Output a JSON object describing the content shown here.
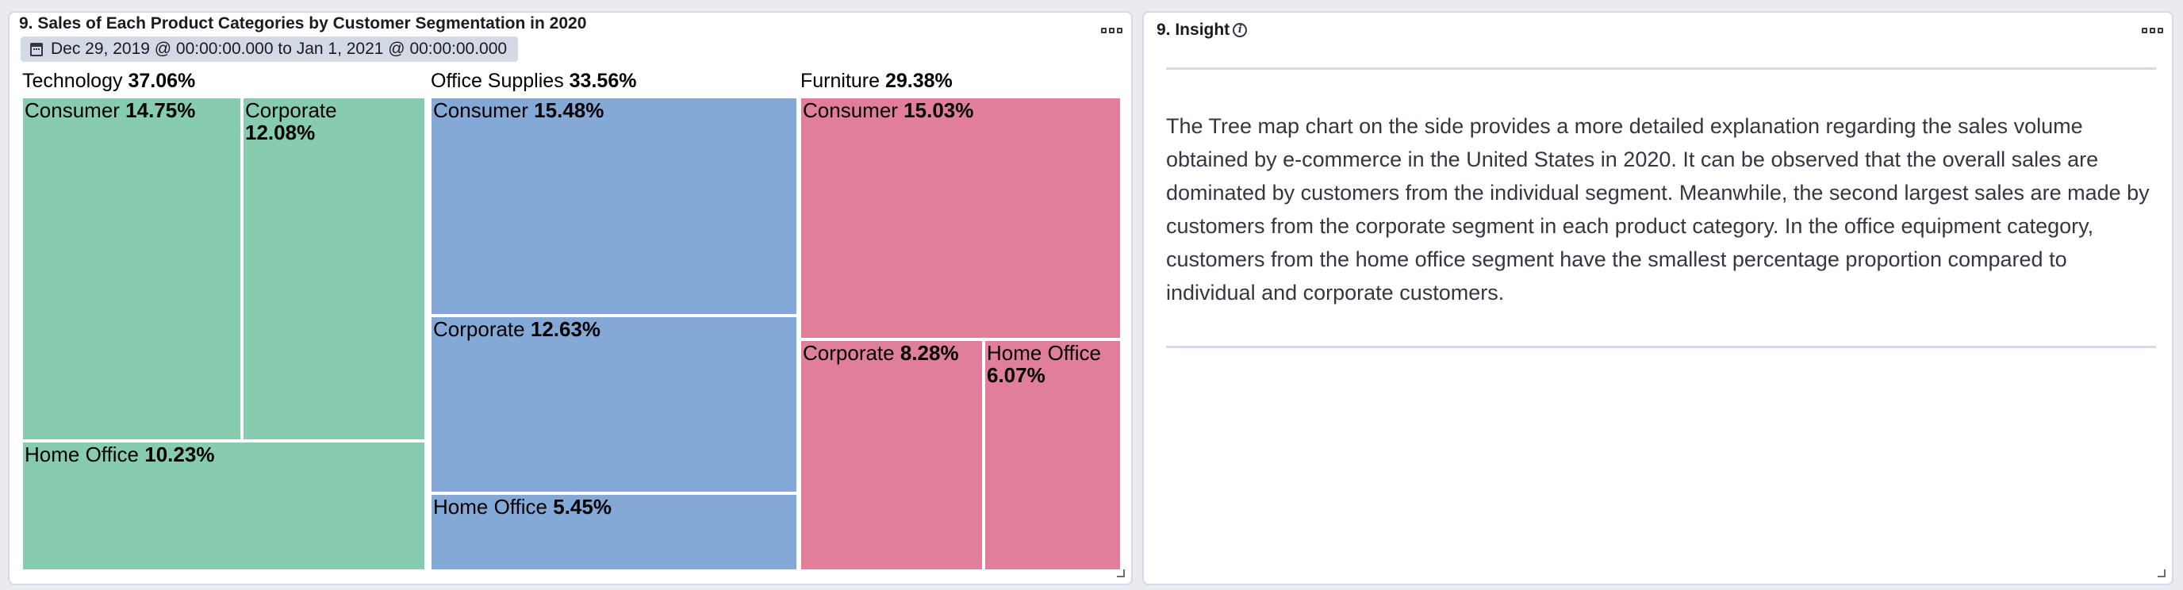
{
  "left_panel": {
    "title": "9. Sales of Each Product Categories by Customer Segmentation in 2020",
    "time_range": "Dec 29, 2019 @ 00:00:00.000 to Jan 1, 2021 @ 00:00:00.000"
  },
  "right_panel": {
    "title": "9. Insight",
    "text": "The Tree map chart on the side provides a more detailed explanation regarding the sales volume obtained by e-commerce in the United States in 2020. It can be observed that the overall sales are dominated by customers from the individual segment. Meanwhile, the second largest sales are made by customers from the corporate segment in each product category. In the office equipment category, customers from the home office segment have the smallest percentage proportion compared to individual and corporate customers."
  },
  "chart_data": {
    "type": "treemap",
    "groups": [
      {
        "name": "Technology",
        "value_label": "37.06%",
        "value": 37.06,
        "segments": [
          {
            "name": "Consumer",
            "value_label": "14.75%",
            "value": 14.75
          },
          {
            "name": "Corporate",
            "value_label": "12.08%",
            "value": 12.08
          },
          {
            "name": "Home Office",
            "value_label": "10.23%",
            "value": 10.23
          }
        ]
      },
      {
        "name": "Office Supplies",
        "value_label": "33.56%",
        "value": 33.56,
        "segments": [
          {
            "name": "Consumer",
            "value_label": "15.48%",
            "value": 15.48
          },
          {
            "name": "Corporate",
            "value_label": "12.63%",
            "value": 12.63
          },
          {
            "name": "Home Office",
            "value_label": "5.45%",
            "value": 5.45
          }
        ]
      },
      {
        "name": "Furniture",
        "value_label": "29.38%",
        "value": 29.38,
        "segments": [
          {
            "name": "Consumer",
            "value_label": "15.03%",
            "value": 15.03
          },
          {
            "name": "Corporate",
            "value_label": "8.28%",
            "value": 8.28
          },
          {
            "name": "Home Office",
            "value_label": "6.07%",
            "value": 6.07
          }
        ]
      }
    ],
    "colors": {
      "Technology": "#87ccb1",
      "Office Supplies": "#84a9d6",
      "Furniture": "#e07e9c"
    }
  }
}
